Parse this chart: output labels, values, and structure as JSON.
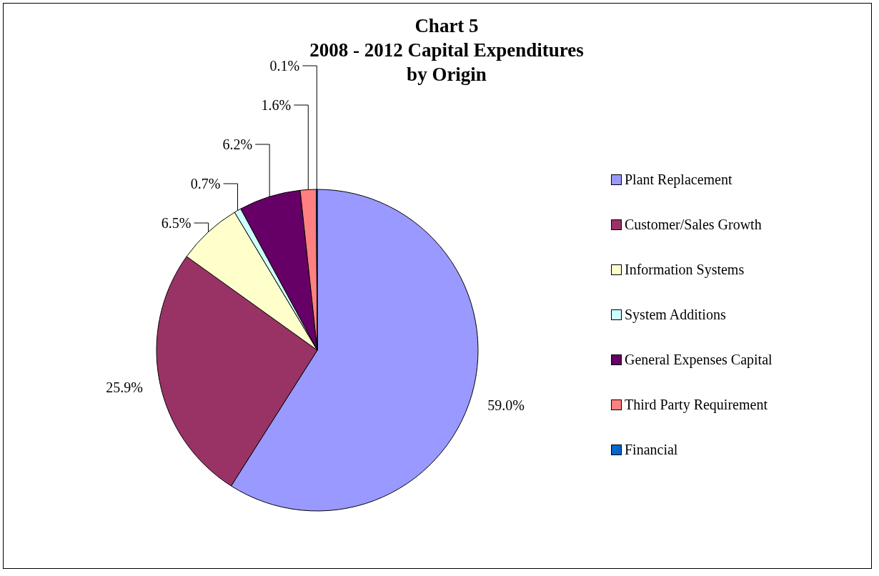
{
  "chart_data": {
    "type": "pie",
    "title": "Chart 5\n2008 - 2012 Capital Expenditures\nby Origin",
    "categories": [
      "Plant Replacement",
      "Customer/Sales Growth",
      "Information Systems",
      "System Additions",
      "General Expenses Capital",
      "Third Party Requirement",
      "Financial"
    ],
    "values": [
      59.0,
      25.9,
      6.5,
      0.7,
      6.2,
      1.6,
      0.1
    ],
    "value_labels": [
      "59.0%",
      "25.9%",
      "6.5%",
      "0.7%",
      "6.2%",
      "1.6%",
      "0.1%"
    ],
    "colors": [
      "#9999ff",
      "#993366",
      "#ffffcc",
      "#ccffff",
      "#660066",
      "#ff8080",
      "#0066cc"
    ],
    "legend": "right"
  }
}
